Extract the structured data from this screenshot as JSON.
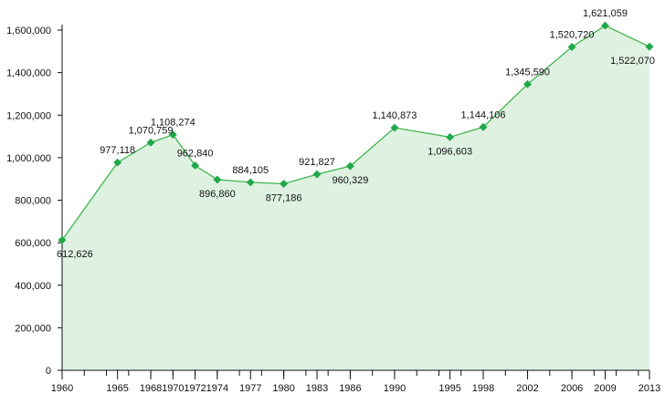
{
  "chart_data": {
    "type": "area",
    "title": "",
    "xlabel": "",
    "ylabel": "",
    "x": [
      1960,
      1965,
      1968,
      1970,
      1972,
      1974,
      1977,
      1980,
      1983,
      1986,
      1990,
      1995,
      1998,
      2002,
      2006,
      2009,
      2013
    ],
    "values": [
      612626,
      977118,
      1070759,
      1108274,
      962840,
      896860,
      884105,
      877186,
      921827,
      960329,
      1140873,
      1096603,
      1144106,
      1345590,
      1520720,
      1621059,
      1522070
    ],
    "data_labels": [
      "612,626",
      "977,118",
      "1,070,759",
      "1,108,274",
      "962,840",
      "896,860",
      "884,105",
      "877,186",
      "921,827",
      "960,329",
      "1,140,873",
      "1,096,603",
      "1,144,106",
      "1,345,590",
      "1,520,720",
      "1,621,059",
      "1,522,070"
    ],
    "x_tick_labels": [
      "1960",
      "1965",
      "1968",
      "1970",
      "1972",
      "1974",
      "1977",
      "1980",
      "1983",
      "1986",
      "1990",
      "1995",
      "1998",
      "2002",
      "2006",
      "2009",
      "2013"
    ],
    "y_tick_values": [
      0,
      200000,
      400000,
      600000,
      800000,
      1000000,
      1200000,
      1400000,
      1600000
    ],
    "y_tick_labels": [
      "0",
      "200,000",
      "400,000",
      "600,000",
      "800,000",
      "1,000,000",
      "1,200,000",
      "1,400,000",
      "1,600,000"
    ],
    "xlim": [
      1960,
      2013
    ],
    "ylim": [
      0,
      1600000
    ],
    "grid": false,
    "legend": "none",
    "colors": {
      "line": "#3db54a",
      "marker": "#1fa84a",
      "fill": "#dff2e2",
      "axis": "#111111"
    }
  }
}
